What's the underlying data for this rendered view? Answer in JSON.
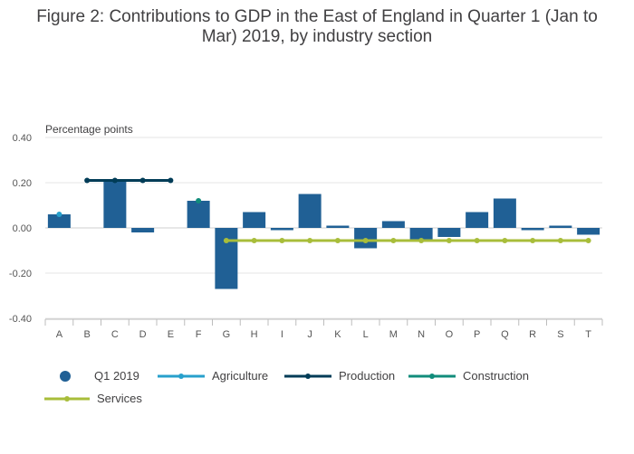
{
  "title_line1": "Figure 2: Contributions to GDP in the East of England in Quarter 1 (Jan to",
  "title_line2": "Mar) 2019, by industry section",
  "chart_data": {
    "type": "bar",
    "title": "Figure 2: Contributions to GDP in the East of England in Quarter 1 (Jan to Mar) 2019, by industry section",
    "ylabel": "Percentage points",
    "xlabel": "",
    "ylim": [
      -0.4,
      0.4
    ],
    "yticks": [
      0.4,
      0.2,
      0.0,
      -0.2,
      -0.4
    ],
    "ytick_labels": [
      "0.40",
      "0.20",
      "0.00",
      "-0.20",
      "-0.40"
    ],
    "grid": true,
    "categories": [
      "A",
      "B",
      "C",
      "D",
      "E",
      "F",
      "G",
      "H",
      "I",
      "J",
      "K",
      "L",
      "M",
      "N",
      "O",
      "P",
      "Q",
      "R",
      "S",
      "T"
    ],
    "series": [
      {
        "name": "Q1 2019",
        "kind": "bar",
        "color": "#206095",
        "values": [
          0.06,
          0.0,
          0.21,
          -0.02,
          0.0,
          0.12,
          -0.27,
          0.07,
          -0.01,
          0.15,
          0.01,
          -0.09,
          0.03,
          -0.05,
          -0.04,
          0.07,
          0.13,
          -0.01,
          0.01,
          -0.03
        ]
      },
      {
        "name": "Agriculture",
        "kind": "line",
        "color": "#27a0cc",
        "start": 0,
        "end": 0,
        "value": 0.06
      },
      {
        "name": "Production",
        "kind": "line",
        "color": "#003c57",
        "start": 1,
        "end": 4,
        "value": 0.21
      },
      {
        "name": "Construction",
        "kind": "line",
        "color": "#118c7b",
        "start": 5,
        "end": 5,
        "value": 0.12
      },
      {
        "name": "Services",
        "kind": "line",
        "color": "#a8bd3a",
        "start": 6,
        "end": 19,
        "value": -0.056
      }
    ],
    "legend_position": "bottom"
  }
}
